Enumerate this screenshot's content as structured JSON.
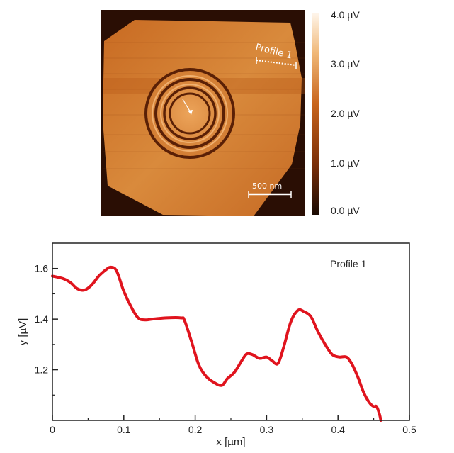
{
  "afm_image": {
    "profile_label": "Profile 1",
    "scalebar_label": "500 nm"
  },
  "colorbar": {
    "ticks": [
      "4.0 µV",
      "3.0 µV",
      "2.0 µV",
      "1.0 µV",
      "0.0 µV"
    ],
    "range": [
      0,
      4
    ],
    "colors": [
      "#1a0a02",
      "#7a2e08",
      "#c8651c",
      "#f0b878",
      "#fff6ec"
    ]
  },
  "chart_data": {
    "type": "line",
    "xlabel": "x [µm]",
    "ylabel": "y [µV]",
    "xlim": [
      0,
      0.5
    ],
    "ylim": [
      1.0,
      1.7
    ],
    "x_ticks": [
      "0",
      "0.1",
      "0.2",
      "0.3",
      "0.4",
      "0.5"
    ],
    "y_ticks": [
      "1.2",
      "1.4",
      "1.6"
    ],
    "legend_text": "Profile 1",
    "line_color": "#e0141e",
    "series": [
      {
        "x": [
          0,
          0.015,
          0.025,
          0.035,
          0.045,
          0.055,
          0.065,
          0.075,
          0.082,
          0.09,
          0.1,
          0.11,
          0.12,
          0.13,
          0.14,
          0.16,
          0.18,
          0.185,
          0.195,
          0.205,
          0.215,
          0.225,
          0.237,
          0.245,
          0.255,
          0.265,
          0.272,
          0.28,
          0.29,
          0.3,
          0.308,
          0.316,
          0.324,
          0.334,
          0.344,
          0.352,
          0.362,
          0.372,
          0.382,
          0.392,
          0.402,
          0.412,
          0.42,
          0.428,
          0.436,
          0.444,
          0.45,
          0.454,
          0.458,
          0.46
        ],
        "y": [
          1.57,
          1.56,
          1.545,
          1.52,
          1.515,
          1.535,
          1.57,
          1.595,
          1.605,
          1.59,
          1.51,
          1.45,
          1.405,
          1.397,
          1.4,
          1.405,
          1.405,
          1.395,
          1.31,
          1.22,
          1.175,
          1.152,
          1.138,
          1.165,
          1.19,
          1.235,
          1.262,
          1.26,
          1.245,
          1.25,
          1.235,
          1.225,
          1.29,
          1.39,
          1.435,
          1.43,
          1.41,
          1.35,
          1.3,
          1.26,
          1.25,
          1.25,
          1.22,
          1.17,
          1.11,
          1.07,
          1.055,
          1.055,
          1.025,
          1.0
        ]
      }
    ]
  }
}
